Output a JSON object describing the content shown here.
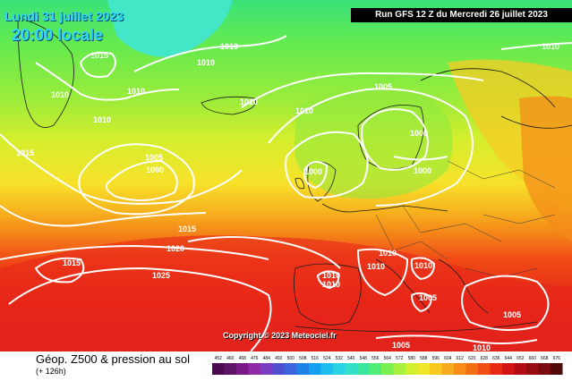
{
  "title": {
    "date": "Lundi 31 juillet 2023",
    "time": "20:00 locale"
  },
  "run_banner": "Run GFS 12 Z du Mercredi 26 juillet 2023",
  "copyright": "Copyright © 2023 Meteociel.fr",
  "footer": {
    "title": "Géop. Z500 & pression au sol",
    "subtitle": "(+ 126h)"
  },
  "isobar_labels": [
    "1010",
    "1015",
    "1010",
    "1010",
    "1010",
    "1010",
    "1015",
    "1005",
    "1000",
    "1010",
    "1010",
    "1005",
    "1000",
    "1000",
    "1000",
    "1010",
    "1015",
    "1020",
    "1015",
    "1025",
    "1010",
    "1010",
    "1010",
    "1010",
    "1010",
    "1005",
    "1005",
    "1005",
    "1010"
  ],
  "legend": {
    "ticks": [
      "452",
      "460",
      "468",
      "476",
      "484",
      "492",
      "500",
      "508",
      "516",
      "524",
      "532",
      "540",
      "548",
      "556",
      "564",
      "572",
      "580",
      "588",
      "596",
      "604",
      "612",
      "620",
      "628",
      "636",
      "644",
      "652",
      "660",
      "668",
      "676"
    ],
    "colors": [
      "#4b0a4f",
      "#5e1466",
      "#7a1a86",
      "#8e2aa6",
      "#7a3cc0",
      "#5050d0",
      "#3c64dc",
      "#1e82e6",
      "#14a0f0",
      "#1ebef0",
      "#28d2e6",
      "#30e0c8",
      "#38e6a0",
      "#50ec78",
      "#78f050",
      "#a8f03c",
      "#d2f030",
      "#f0e628",
      "#f8c81e",
      "#f8aa1e",
      "#f88c14",
      "#f46e14",
      "#f04e14",
      "#e62a14",
      "#d21414",
      "#b40c14",
      "#960a10",
      "#780a10",
      "#500a0a"
    ]
  }
}
